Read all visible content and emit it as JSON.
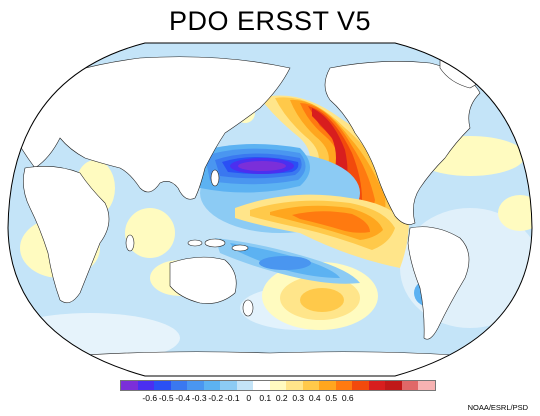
{
  "title": "PDO ERSST V5",
  "credit": "NOAA/ESRL/PSD",
  "legend": {
    "colors": [
      "#7b2fd9",
      "#4b2ff0",
      "#2a50f5",
      "#3a78f0",
      "#4a96f0",
      "#5cb2f2",
      "#8ccbf4",
      "#c4e4f8",
      "#ffffff",
      "#fffbc0",
      "#ffe58a",
      "#ffc94a",
      "#ffa61e",
      "#ff7a10",
      "#f24a0c",
      "#d81e1e",
      "#c01818",
      "#e06868",
      "#f7b2b2"
    ],
    "tick_labels": [
      "-0.6",
      "-0.5",
      "-0.4",
      "-0.3",
      "-0.2",
      "-0.1",
      "0",
      "0.1",
      "0.2",
      "0.3",
      "0.4",
      "0.5",
      "0.6"
    ]
  }
}
